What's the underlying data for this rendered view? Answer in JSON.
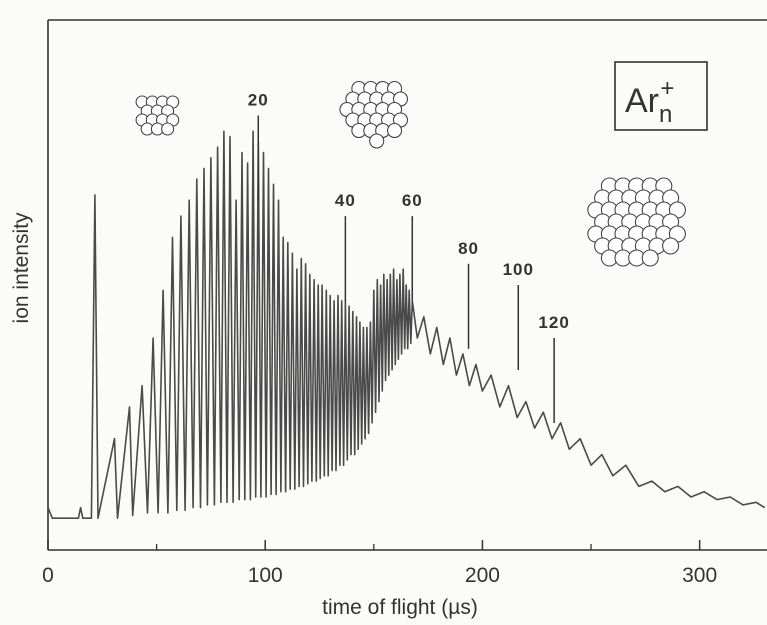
{
  "chart_data": {
    "type": "line",
    "x_label": "time of flight (µs)",
    "y_label": "ion intensity",
    "xlim": [
      0,
      331
    ],
    "ylim": [
      0,
      100
    ],
    "xticks": [
      0,
      100,
      200,
      300
    ],
    "xminor_ticks": [
      50,
      150,
      250
    ],
    "color": "#4a4a4a",
    "formula": {
      "base": "Ar",
      "subscript": "n",
      "superscript": "+"
    },
    "annotations": [
      {
        "label": "20",
        "x": 96.8,
        "y": 82
      },
      {
        "label": "40",
        "x": 136.9,
        "y": 63
      },
      {
        "label": "60",
        "x": 167.7,
        "y": 63
      },
      {
        "label": "80",
        "x": 193.6,
        "y": 54
      },
      {
        "label": "100",
        "x": 216.5,
        "y": 50
      },
      {
        "label": "120",
        "x": 233,
        "y": 40
      }
    ],
    "x": [
      0,
      2,
      14,
      15,
      16,
      20,
      21.6,
      23,
      30.6,
      32,
      37.5,
      39,
      43.3,
      45.8,
      48.4,
      50.7,
      53.0,
      55.2,
      57.3,
      59.3,
      61.2,
      63.1,
      65.0,
      66.8,
      68.5,
      70.2,
      71.8,
      73.4,
      75.0,
      76.6,
      78.1,
      79.6,
      81.0,
      82.4,
      83.8,
      85.2,
      86.6,
      88.0,
      89.3,
      90.6,
      91.9,
      93.2,
      94.4,
      95.6,
      96.8,
      98.0,
      99.2,
      100.4,
      101.5,
      102.7,
      103.8,
      105.0,
      106.1,
      107.2,
      108.3,
      109.4,
      110.4,
      111.5,
      112.5,
      113.6,
      114.6,
      115.6,
      116.6,
      117.6,
      118.6,
      119.6,
      120.5,
      121.5,
      122.5,
      123.5,
      124.4,
      125.3,
      126.2,
      127.2,
      128.1,
      129.0,
      129.9,
      130.8,
      131.7,
      132.6,
      133.5,
      134.4,
      135.2,
      136.1,
      136.9,
      137.8,
      138.6,
      139.5,
      140.3,
      141.2,
      142.0,
      142.8,
      143.6,
      144.4,
      145.2,
      146.0,
      146.8,
      147.6,
      148.4,
      149.2,
      150.0,
      150.8,
      151.6,
      152.4,
      153.1,
      153.9,
      154.6,
      155.4,
      156.1,
      156.9,
      157.6,
      158.4,
      159.1,
      159.9,
      160.6,
      161.3,
      162.0,
      162.8,
      163.5,
      164.2,
      164.9,
      165.6,
      166.3,
      167.0,
      167.7,
      170,
      173,
      176,
      179,
      182,
      185,
      188,
      191,
      194,
      197,
      200,
      204,
      208,
      212,
      216,
      220,
      224,
      228,
      232,
      236,
      240,
      245,
      250,
      255,
      260,
      266,
      272,
      278,
      284,
      290,
      296,
      302,
      308,
      314,
      320,
      326,
      330
    ],
    "values": [
      8,
      6,
      6,
      8,
      6,
      6,
      67,
      6,
      21,
      6,
      27,
      6.5,
      31,
      7,
      40,
      7,
      49,
      7,
      59,
      7.5,
      63,
      7.5,
      66,
      8,
      70,
      8,
      72,
      8.5,
      74,
      8.5,
      76,
      9,
      79,
      9,
      78,
      9,
      66,
      9.5,
      75,
      9.5,
      73,
      9.5,
      79,
      10,
      77,
      10,
      75,
      10,
      72,
      10.5,
      69,
      10.5,
      66,
      11,
      59,
      11,
      58,
      11.5,
      56,
      11.5,
      53,
      12,
      55,
      12,
      54,
      12.5,
      52,
      13,
      51,
      13,
      50,
      13.5,
      50,
      14,
      49,
      14,
      48,
      15,
      47,
      15,
      48,
      16,
      47,
      16,
      47,
      17,
      46,
      18,
      45,
      18,
      44,
      19,
      43,
      20,
      42,
      21,
      42,
      22,
      43,
      24,
      49,
      26,
      51,
      28,
      50,
      30,
      52,
      32,
      51,
      33,
      52,
      34,
      53,
      35,
      51,
      36,
      52,
      37,
      53,
      38,
      50,
      38,
      49,
      39,
      47,
      40,
      44,
      37,
      42,
      35,
      40,
      33,
      37,
      31,
      35,
      30,
      33,
      27,
      31,
      25,
      28,
      23,
      26,
      21,
      24,
      19,
      21,
      16,
      18,
      14,
      16,
      12,
      13,
      11,
      12,
      10,
      11,
      9.5,
      10,
      8.5,
      9,
      8
    ]
  }
}
